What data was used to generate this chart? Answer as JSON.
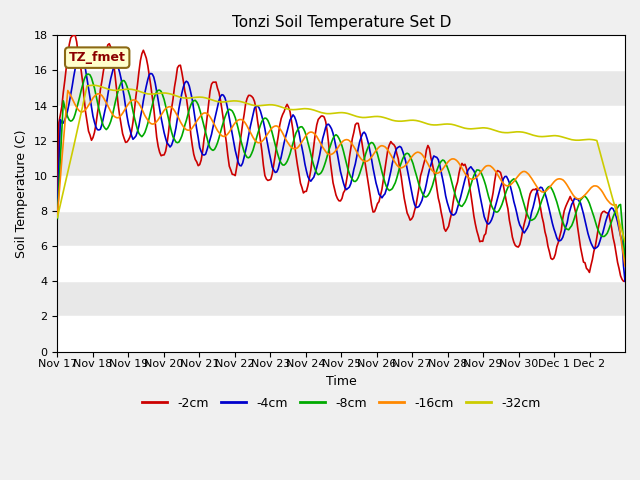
{
  "title": "Tonzi Soil Temperature Set D",
  "xlabel": "Time",
  "ylabel": "Soil Temperature (C)",
  "ylim": [
    0,
    18
  ],
  "yticks": [
    0,
    2,
    4,
    6,
    8,
    10,
    12,
    14,
    16,
    18
  ],
  "legend_label": "TZ_fmet",
  "series_labels": [
    "-2cm",
    "-4cm",
    "-8cm",
    "-16cm",
    "-32cm"
  ],
  "series_colors": [
    "#cc0000",
    "#0000cc",
    "#00aa00",
    "#ff8800",
    "#cccc00"
  ],
  "plot_bg_color": "#e8e8e8",
  "fig_bg_color": "#f0f0f0",
  "x_tick_labels": [
    "Nov 17",
    "Nov 18",
    "Nov 19",
    "Nov 20",
    "Nov 21",
    "Nov 22",
    "Nov 23",
    "Nov 24",
    "Nov 25",
    "Nov 26",
    "Nov 27",
    "Nov 28",
    "Nov 29",
    "Nov 30",
    "Dec 1",
    "Dec 2"
  ],
  "n_days": 16
}
